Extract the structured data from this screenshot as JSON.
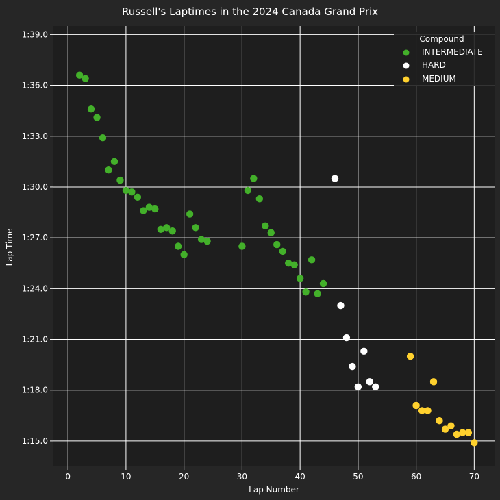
{
  "chart_data": {
    "type": "scatter",
    "title": "Russell's Laptimes in the 2024 Canada Grand Prix",
    "xlabel": "Lap Number",
    "ylabel": "Lap Time",
    "xlim": [
      -2.5,
      73.5
    ],
    "ylim_seconds": [
      73.5,
      99.5
    ],
    "x_ticks": [
      0,
      10,
      20,
      30,
      40,
      50,
      60,
      70
    ],
    "y_ticks": [
      {
        "value": 75,
        "label": "1:15.0"
      },
      {
        "value": 78,
        "label": "1:18.0"
      },
      {
        "value": 81,
        "label": "1:21.0"
      },
      {
        "value": 84,
        "label": "1:24.0"
      },
      {
        "value": 87,
        "label": "1:27.0"
      },
      {
        "value": 90,
        "label": "1:30.0"
      },
      {
        "value": 93,
        "label": "1:33.0"
      },
      {
        "value": 96,
        "label": "1:36.0"
      },
      {
        "value": 99,
        "label": "1:39.0"
      }
    ],
    "grid": true,
    "legend": {
      "title": "Compound",
      "placement": "top-right"
    },
    "series": [
      {
        "name": "INTERMEDIATE",
        "color": "#43b02a",
        "points": [
          [
            2,
            96.6
          ],
          [
            3,
            96.4
          ],
          [
            4,
            94.6
          ],
          [
            5,
            94.1
          ],
          [
            6,
            92.9
          ],
          [
            7,
            91.0
          ],
          [
            8,
            91.5
          ],
          [
            9,
            90.4
          ],
          [
            10,
            89.8
          ],
          [
            11,
            89.7
          ],
          [
            12,
            89.4
          ],
          [
            13,
            88.6
          ],
          [
            14,
            88.8
          ],
          [
            15,
            88.7
          ],
          [
            16,
            87.5
          ],
          [
            17,
            87.6
          ],
          [
            18,
            87.4
          ],
          [
            19,
            86.5
          ],
          [
            20,
            86.0
          ],
          [
            21,
            88.4
          ],
          [
            22,
            87.6
          ],
          [
            23,
            86.9
          ],
          [
            24,
            86.8
          ],
          [
            30,
            86.5
          ],
          [
            31,
            89.8
          ],
          [
            32,
            90.5
          ],
          [
            33,
            89.3
          ],
          [
            34,
            87.7
          ],
          [
            35,
            87.3
          ],
          [
            36,
            86.6
          ],
          [
            37,
            86.2
          ],
          [
            38,
            85.5
          ],
          [
            39,
            85.4
          ],
          [
            40,
            84.6
          ],
          [
            41,
            83.8
          ],
          [
            42,
            85.7
          ],
          [
            43,
            83.7
          ],
          [
            44,
            84.3
          ]
        ]
      },
      {
        "name": "HARD",
        "color": "#ffffff",
        "points": [
          [
            46,
            90.5
          ],
          [
            47,
            83.0
          ],
          [
            48,
            81.1
          ],
          [
            49,
            79.4
          ],
          [
            50,
            78.2
          ],
          [
            51,
            80.3
          ],
          [
            52,
            78.5
          ],
          [
            53,
            78.2
          ]
        ]
      },
      {
        "name": "MEDIUM",
        "color": "#ffd12e",
        "points": [
          [
            59,
            80.0
          ],
          [
            60,
            77.1
          ],
          [
            61,
            76.8
          ],
          [
            62,
            76.8
          ],
          [
            63,
            78.5
          ],
          [
            64,
            76.2
          ],
          [
            65,
            75.7
          ],
          [
            66,
            75.9
          ],
          [
            67,
            75.4
          ],
          [
            68,
            75.5
          ],
          [
            69,
            75.5
          ],
          [
            70,
            74.9
          ]
        ]
      }
    ]
  }
}
